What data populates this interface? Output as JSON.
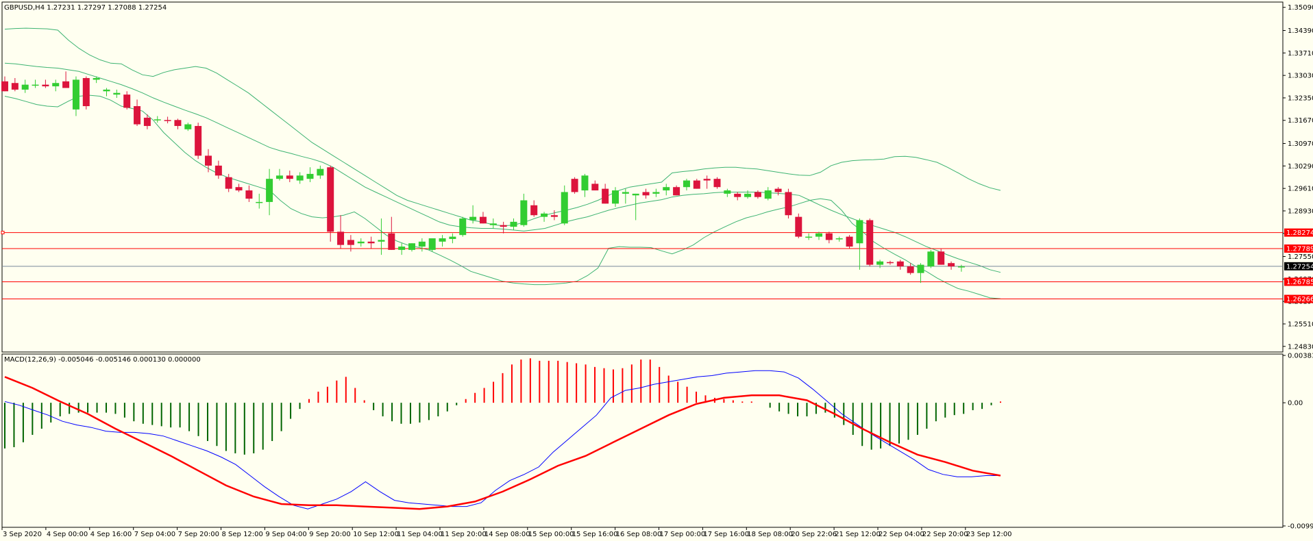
{
  "window": {
    "info_label": "GBPUSD,H4  1.27231 1.27297 1.27088 1.27254",
    "macd_label": "MACD(12,26,9) -0.005046 -0.005146 0.000130 0.000000"
  },
  "colors": {
    "background": "#FFFFF0",
    "frame": "#000000",
    "bull_candle": "#32CD32",
    "bear_candle": "#DC143C",
    "bollinger": "#3CB371",
    "hline": "#FF0000",
    "bid_line": "#778899",
    "macd_hist_pos": "#FF0000",
    "macd_hist_neg": "#006400",
    "macd_main": "#0000FF",
    "macd_signal": "#FF0000"
  },
  "chart_data": [
    {
      "type": "candlestick",
      "symbol": "GBPUSD",
      "timeframe": "H4",
      "y_ticks": [
        "1.35090",
        "1.34390",
        "1.33710",
        "1.33030",
        "1.32350",
        "1.31670",
        "1.30970",
        "1.30290",
        "1.29610",
        "1.28930",
        "1.28250",
        "1.27550",
        "1.26870",
        "1.26190",
        "1.25510",
        "1.24830"
      ],
      "ylim": [
        1.2466,
        1.3525
      ],
      "x_ticks": [
        "3 Sep 2020",
        "4 Sep 00:00",
        "4 Sep 16:00",
        "7 Sep 04:00",
        "7 Sep 20:00",
        "8 Sep 12:00",
        "9 Sep 04:00",
        "9 Sep 20:00",
        "10 Sep 12:00",
        "11 Sep 04:00",
        "11 Sep 20:00",
        "14 Sep 08:00",
        "15 Sep 00:00",
        "15 Sep 16:00",
        "16 Sep 08:00",
        "17 Sep 00:00",
        "17 Sep 16:00",
        "18 Sep 08:00",
        "20 Sep 22:06",
        "21 Sep 12:00",
        "22 Sep 04:00",
        "22 Sep 20:00",
        "23 Sep 12:00"
      ],
      "horizontal_lines": [
        {
          "price": 1.28274,
          "label": "1.28274"
        },
        {
          "price": 1.27789,
          "label": "1.27789"
        },
        {
          "price": 1.26785,
          "label": "1.26785"
        },
        {
          "price": 1.26266,
          "label": "1.26266"
        }
      ],
      "bid": {
        "price": 1.27254,
        "label": "1.27254"
      },
      "candles": [
        [
          1.3285,
          1.33,
          1.3255,
          1.3255
        ],
        [
          1.328,
          1.3295,
          1.3255,
          1.326
        ],
        [
          1.326,
          1.329,
          1.325,
          1.3275
        ],
        [
          1.3275,
          1.329,
          1.3265,
          1.3275
        ],
        [
          1.3275,
          1.329,
          1.3265,
          1.327
        ],
        [
          1.327,
          1.329,
          1.3255,
          1.328
        ],
        [
          1.3285,
          1.3315,
          1.3265,
          1.3265
        ],
        [
          1.32,
          1.33,
          1.318,
          1.329
        ],
        [
          1.3295,
          1.33,
          1.32,
          1.321
        ],
        [
          1.329,
          1.33,
          1.328,
          1.3295
        ],
        [
          1.3255,
          1.3265,
          1.324,
          1.326
        ],
        [
          1.3245,
          1.326,
          1.3235,
          1.325
        ],
        [
          1.3245,
          1.3255,
          1.32,
          1.3205
        ],
        [
          1.321,
          1.323,
          1.315,
          1.3155
        ],
        [
          1.3175,
          1.3185,
          1.314,
          1.315
        ],
        [
          1.317,
          1.318,
          1.316,
          1.317
        ],
        [
          1.3168,
          1.3178,
          1.3158,
          1.3165
        ],
        [
          1.3168,
          1.3172,
          1.314,
          1.315
        ],
        [
          1.314,
          1.316,
          1.3135,
          1.3155
        ],
        [
          1.315,
          1.316,
          1.305,
          1.306
        ],
        [
          1.306,
          1.308,
          1.301,
          1.303
        ],
        [
          1.303,
          1.3045,
          1.299,
          1.3
        ],
        [
          1.2995,
          1.3005,
          1.295,
          1.296
        ],
        [
          1.2965,
          1.2975,
          1.295,
          1.2955
        ],
        [
          1.2955,
          1.297,
          1.292,
          1.293
        ],
        [
          1.292,
          1.2945,
          1.29,
          1.292
        ],
        [
          1.292,
          1.302,
          1.288,
          1.299
        ],
        [
          1.299,
          1.302,
          1.2985,
          1.3
        ],
        [
          1.3,
          1.3015,
          1.298,
          1.299
        ],
        [
          1.2985,
          1.301,
          1.2975,
          1.3
        ],
        [
          1.299,
          1.3025,
          1.298,
          1.3005
        ],
        [
          1.3,
          1.303,
          1.299,
          1.302
        ],
        [
          1.3025,
          1.303,
          1.28,
          1.283
        ],
        [
          1.283,
          1.288,
          1.278,
          1.279
        ],
        [
          1.2805,
          1.282,
          1.277,
          1.279
        ],
        [
          1.2795,
          1.281,
          1.2785,
          1.28
        ],
        [
          1.28,
          1.2815,
          1.278,
          1.2795
        ],
        [
          1.28,
          1.287,
          1.276,
          1.2805
        ],
        [
          1.2825,
          1.2875,
          1.2775,
          1.2775
        ],
        [
          1.2775,
          1.2795,
          1.276,
          1.2785
        ],
        [
          1.2775,
          1.2795,
          1.277,
          1.2795
        ],
        [
          1.2785,
          1.281,
          1.277,
          1.28
        ],
        [
          1.2775,
          1.281,
          1.277,
          1.281
        ],
        [
          1.28,
          1.282,
          1.2785,
          1.281
        ],
        [
          1.2808,
          1.2825,
          1.2795,
          1.2815
        ],
        [
          1.282,
          1.2875,
          1.2815,
          1.287
        ],
        [
          1.2865,
          1.291,
          1.2855,
          1.2875
        ],
        [
          1.2875,
          1.289,
          1.2855,
          1.2855
        ],
        [
          1.285,
          1.287,
          1.284,
          1.2855
        ],
        [
          1.285,
          1.286,
          1.2825,
          1.2845
        ],
        [
          1.2845,
          1.287,
          1.2835,
          1.286
        ],
        [
          1.285,
          1.2945,
          1.2845,
          1.2925
        ],
        [
          1.291,
          1.2925,
          1.2875,
          1.288
        ],
        [
          1.2875,
          1.289,
          1.286,
          1.2885
        ],
        [
          1.288,
          1.2895,
          1.2865,
          1.2875
        ],
        [
          1.2855,
          1.297,
          1.285,
          1.295
        ],
        [
          1.299,
          1.2995,
          1.2945,
          1.295
        ],
        [
          1.2955,
          1.3005,
          1.2935,
          1.3
        ],
        [
          1.2975,
          1.2985,
          1.2955,
          1.2955
        ],
        [
          1.296,
          1.2975,
          1.2915,
          1.2915
        ],
        [
          1.2915,
          1.2965,
          1.2905,
          1.2955
        ],
        [
          1.2945,
          1.296,
          1.2915,
          1.295
        ],
        [
          1.294,
          1.2945,
          1.2865,
          1.2945
        ],
        [
          1.295,
          1.296,
          1.293,
          1.294
        ],
        [
          1.2945,
          1.296,
          1.2935,
          1.295
        ],
        [
          1.2955,
          1.2975,
          1.294,
          1.2965
        ],
        [
          1.2965,
          1.297,
          1.294,
          1.294
        ],
        [
          1.2965,
          1.299,
          1.2955,
          1.2985
        ],
        [
          1.2985,
          1.299,
          1.296,
          1.296
        ],
        [
          1.299,
          1.3,
          1.296,
          1.2985
        ],
        [
          1.299,
          1.2995,
          1.296,
          1.2965
        ],
        [
          1.2945,
          1.296,
          1.2935,
          1.2955
        ],
        [
          1.2945,
          1.295,
          1.2925,
          1.2935
        ],
        [
          1.2935,
          1.2955,
          1.293,
          1.2945
        ],
        [
          1.295,
          1.2955,
          1.293,
          1.2935
        ],
        [
          1.293,
          1.2965,
          1.2925,
          1.2955
        ],
        [
          1.296,
          1.2965,
          1.294,
          1.295
        ],
        [
          1.295,
          1.296,
          1.287,
          1.288
        ],
        [
          1.2875,
          1.2885,
          1.281,
          1.2815
        ],
        [
          1.2815,
          1.2825,
          1.2805,
          1.2815
        ],
        [
          1.2815,
          1.283,
          1.2805,
          1.2825
        ],
        [
          1.2825,
          1.283,
          1.2795,
          1.2805
        ],
        [
          1.281,
          1.2815,
          1.28,
          1.281
        ],
        [
          1.2815,
          1.282,
          1.278,
          1.2785
        ],
        [
          1.2795,
          1.287,
          1.2715,
          1.2865
        ],
        [
          1.2865,
          1.287,
          1.2725,
          1.273
        ],
        [
          1.273,
          1.2745,
          1.272,
          1.274
        ],
        [
          1.2738,
          1.2742,
          1.273,
          1.2735
        ],
        [
          1.274,
          1.2745,
          1.2715,
          1.2725
        ],
        [
          1.2725,
          1.2735,
          1.27,
          1.2705
        ],
        [
          1.2705,
          1.2735,
          1.2675,
          1.273
        ],
        [
          1.2725,
          1.2775,
          1.272,
          1.277
        ],
        [
          1.277,
          1.278,
          1.273,
          1.273
        ],
        [
          1.2735,
          1.274,
          1.2715,
          1.2725
        ],
        [
          1.2723,
          1.273,
          1.2709,
          1.2725
        ]
      ],
      "bollinger": {
        "upper": [
          1.3443,
          1.3445,
          1.3446,
          1.3445,
          1.3444,
          1.344,
          1.341,
          1.3385,
          1.3365,
          1.335,
          1.334,
          1.3338,
          1.332,
          1.3305,
          1.33,
          1.3312,
          1.332,
          1.3325,
          1.333,
          1.3325,
          1.331,
          1.329,
          1.327,
          1.325,
          1.3225,
          1.32,
          1.3175,
          1.315,
          1.3125,
          1.31,
          1.308,
          1.306,
          1.304,
          1.302,
          1.3,
          1.298,
          1.296,
          1.294,
          1.2925,
          1.2915,
          1.2905,
          1.2895,
          1.2885,
          1.2875,
          1.2865,
          1.286,
          1.2852,
          1.2848,
          1.285,
          1.2858,
          1.287,
          1.288,
          1.2888,
          1.2895,
          1.2903,
          1.2913,
          1.2925,
          1.294,
          1.2955,
          1.2965,
          1.297,
          1.2975,
          1.298,
          1.3008,
          1.3012,
          1.3015,
          1.302,
          1.3023,
          1.3025,
          1.3025,
          1.3022,
          1.302,
          1.3015,
          1.301,
          1.3005,
          1.3001,
          1.3,
          1.301,
          1.303,
          1.304,
          1.3045,
          1.3047,
          1.3048,
          1.305,
          1.3057,
          1.3058,
          1.3055,
          1.3048,
          1.304,
          1.3025,
          1.3008,
          1.299,
          1.2975,
          1.2963,
          1.2955
        ],
        "middle": [
          1.334,
          1.3338,
          1.3334,
          1.333,
          1.3327,
          1.3325,
          1.332,
          1.3315,
          1.3305,
          1.3295,
          1.3285,
          1.3275,
          1.3263,
          1.325,
          1.3235,
          1.3222,
          1.321,
          1.3198,
          1.3187,
          1.3175,
          1.316,
          1.3145,
          1.313,
          1.3115,
          1.31,
          1.3085,
          1.3075,
          1.3067,
          1.3058,
          1.305,
          1.304,
          1.3025,
          1.3005,
          1.2985,
          1.2965,
          1.295,
          1.2935,
          1.292,
          1.2905,
          1.289,
          1.2875,
          1.286,
          1.285,
          1.2845,
          1.2842,
          1.284,
          1.284,
          1.2838,
          1.2835,
          1.2832,
          1.2836,
          1.284,
          1.285,
          1.286,
          1.2868,
          1.2875,
          1.2885,
          1.2895,
          1.2903,
          1.291,
          1.2917,
          1.2922,
          1.2927,
          1.2935,
          1.294,
          1.2943,
          1.2945,
          1.2948,
          1.295,
          1.295,
          1.295,
          1.295,
          1.2948,
          1.2946,
          1.2944,
          1.294,
          1.2925,
          1.291,
          1.2895,
          1.2882,
          1.287,
          1.2858,
          1.2848,
          1.2838,
          1.2828,
          1.2815,
          1.28,
          1.2785,
          1.2773,
          1.276,
          1.2748,
          1.2738,
          1.2728,
          1.2715,
          1.2707
        ],
        "lower": [
          1.324,
          1.3233,
          1.3224,
          1.3215,
          1.321,
          1.3208,
          1.3225,
          1.324,
          1.3243,
          1.324,
          1.3228,
          1.321,
          1.3203,
          1.3195,
          1.3168,
          1.313,
          1.31,
          1.307,
          1.3045,
          1.3025,
          1.3008,
          1.2995,
          1.2985,
          1.2975,
          1.2965,
          1.2955,
          1.2925,
          1.29,
          1.2885,
          1.2875,
          1.2872,
          1.2875,
          1.288,
          1.289,
          1.287,
          1.2845,
          1.282,
          1.2802,
          1.279,
          1.2783,
          1.2775,
          1.276,
          1.2745,
          1.2728,
          1.271,
          1.27,
          1.269,
          1.268,
          1.2675,
          1.2672,
          1.267,
          1.267,
          1.2672,
          1.2675,
          1.268,
          1.2697,
          1.272,
          1.278,
          1.2785,
          1.2783,
          1.2783,
          1.2782,
          1.2772,
          1.2763,
          1.2775,
          1.279,
          1.2812,
          1.283,
          1.2845,
          1.286,
          1.2872,
          1.288,
          1.289,
          1.2898,
          1.2905,
          1.2915,
          1.2925,
          1.293,
          1.2925,
          1.2895,
          1.2855,
          1.283,
          1.28,
          1.278,
          1.2762,
          1.2745,
          1.2725,
          1.271,
          1.269,
          1.2673,
          1.2658,
          1.265,
          1.264,
          1.263,
          1.2627
        ]
      }
    },
    {
      "type": "macd",
      "parameters": "12,26,9",
      "y_ticks": [
        "0.003835",
        "0.00",
        "-0.009977"
      ],
      "ylim": [
        -0.009977,
        0.003835
      ],
      "histogram": [
        -0.0037,
        -0.0036,
        -0.0032,
        -0.0026,
        -0.0021,
        -0.0016,
        -0.0011,
        -0.0009,
        -0.0008,
        -0.0008,
        -0.0008,
        -0.0008,
        -0.0009,
        -0.0012,
        -0.0015,
        -0.0017,
        -0.0018,
        -0.0019,
        -0.002,
        -0.002,
        -0.0023,
        -0.0027,
        -0.0031,
        -0.0035,
        -0.0039,
        -0.0041,
        -0.0042,
        -0.0041,
        -0.0038,
        -0.0031,
        -0.0023,
        -0.0013,
        -0.0005,
        0.0003,
        0.0009,
        0.0013,
        0.0018,
        0.0021,
        0.0012,
        0.0002,
        -0.0006,
        -0.0011,
        -0.0015,
        -0.0017,
        -0.0017,
        -0.0016,
        -0.0014,
        -0.0011,
        -0.0007,
        -0.0002,
        0.0003,
        0.0008,
        0.0012,
        0.0017,
        0.0024,
        0.0031,
        0.0035,
        0.0036,
        0.0034,
        0.0034,
        0.0034,
        0.0033,
        0.0032,
        0.0031,
        0.0029,
        0.0028,
        0.0027,
        0.0028,
        0.0031,
        0.0035,
        0.0035,
        0.0029,
        0.0022,
        0.0017,
        0.0013,
        0.0009,
        0.0006,
        0.0004,
        0.0003,
        0.0002,
        0.0001,
        0.0001,
        0.0,
        -0.0004,
        -0.0007,
        -0.0009,
        -0.0011,
        -0.0011,
        -0.0009,
        -0.0008,
        -0.0012,
        -0.0018,
        -0.0026,
        -0.0035,
        -0.0038,
        -0.0037,
        -0.0035,
        -0.0033,
        -0.003,
        -0.0026,
        -0.0021,
        -0.0015,
        -0.0012,
        -0.001,
        -0.0009,
        -0.0006,
        -0.0005,
        -0.0002,
        0.0001
      ],
      "main": [
        0.0001,
        -0.0002,
        -0.0006,
        -0.001,
        -0.0015,
        -0.0018,
        -0.002,
        -0.0023,
        -0.0024,
        -0.0024,
        -0.0025,
        -0.0027,
        -0.0031,
        -0.0035,
        -0.0039,
        -0.0044,
        -0.005,
        -0.0059,
        -0.0068,
        -0.0076,
        -0.0083,
        -0.0086,
        -0.0082,
        -0.0078,
        -0.0072,
        -0.0064,
        -0.0072,
        -0.0079,
        -0.0081,
        -0.0082,
        -0.0083,
        -0.0084,
        -0.0084,
        -0.0081,
        -0.0071,
        -0.0063,
        -0.0058,
        -0.0052,
        -0.004,
        -0.003,
        -0.002,
        -0.001,
        0.0004,
        0.001,
        0.0012,
        0.0015,
        0.0017,
        0.0019,
        0.0021,
        0.0022,
        0.0024,
        0.0025,
        0.0026,
        0.0026,
        0.0025,
        0.002,
        0.0011,
        0.0001,
        -0.0009,
        -0.0017,
        -0.0025,
        -0.0032,
        -0.0039,
        -0.0046,
        -0.0054,
        -0.0058,
        -0.006,
        -0.006,
        -0.0059,
        -0.0059
      ],
      "signal": [
        0.0021,
        0.0012,
        0.0001,
        -0.0009,
        -0.0021,
        -0.0032,
        -0.0043,
        -0.0055,
        -0.0067,
        -0.0076,
        -0.0082,
        -0.0083,
        -0.0083,
        -0.0084,
        -0.0085,
        -0.0086,
        -0.0084,
        -0.008,
        -0.0072,
        -0.0062,
        -0.0051,
        -0.0043,
        -0.0032,
        -0.0021,
        -0.001,
        -0.0001,
        0.0004,
        0.0006,
        0.0006,
        0.0002,
        -0.0009,
        -0.0021,
        -0.0032,
        -0.0042,
        -0.0048,
        -0.0055,
        -0.0059
      ],
      "histogram_color_rule": "positive bars red, negative bars dark green"
    }
  ]
}
